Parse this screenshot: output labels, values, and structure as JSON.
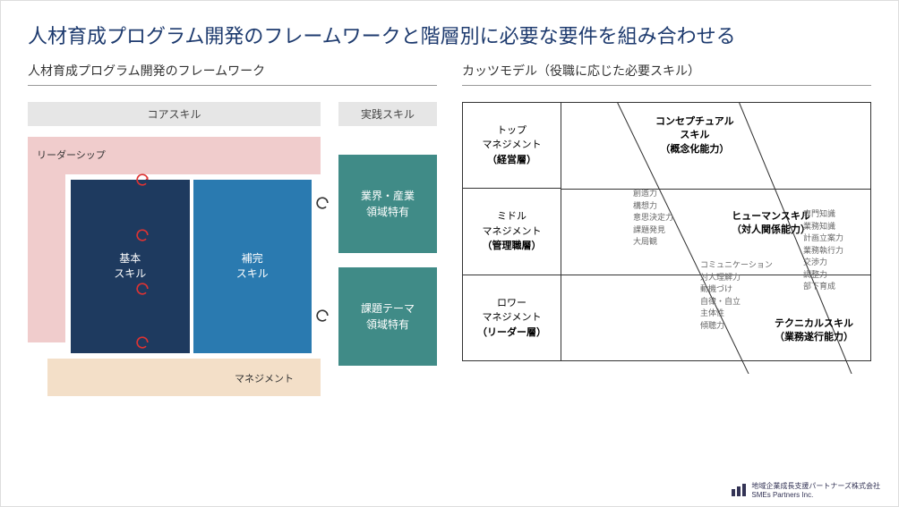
{
  "title": "人材育成プログラム開発のフレームワークと階層別に必要な要件を組み合わせる",
  "left": {
    "subtitle": "人材育成プログラム開発のフレームワーク",
    "core_header": "コアスキル",
    "practice_header": "実践スキル",
    "leadership": "リーダーシップ",
    "management": "マネジメント",
    "basic": "基本\nスキル",
    "complement": "補完\nスキル",
    "practice1": "業界・産業\n領域特有",
    "practice2": "課題テーマ\n領域特有",
    "colors": {
      "pink": "#f0cccc",
      "beige": "#f3dfc8",
      "navy": "#1e3a5f",
      "blue": "#2a7ab0",
      "teal": "#408b87",
      "header_gray": "#e6e6e6",
      "arrow": "#d33"
    }
  },
  "right": {
    "subtitle": "カッツモデル（役職に応じた必要スキル）",
    "levels": [
      {
        "name": "トップ\nマネジメント",
        "sub": "（経営層）"
      },
      {
        "name": "ミドル\nマネジメント",
        "sub": "（管理職層）"
      },
      {
        "name": "ロワー\nマネジメント",
        "sub": "（リーダー層）"
      }
    ],
    "skills": [
      {
        "title": "コンセプチュアル\nスキル",
        "sub": "（概念化能力）",
        "items": [
          "創造力",
          "構想力",
          "意思決定力",
          "課題発見",
          "大局観"
        ]
      },
      {
        "title": "ヒューマンスキル",
        "sub": "（対人関係能力）",
        "items": [
          "コミュニケーション",
          "対人理解力",
          "動機づけ",
          "自律・自立",
          "主体性",
          "傾聴力"
        ]
      },
      {
        "title": "テクニカルスキル",
        "sub": "（業務遂行能力）",
        "items": [
          "専門知識",
          "業務知識",
          "計画立案力",
          "業務執行力",
          "交渉力",
          "調整力",
          "部下育成"
        ]
      }
    ]
  },
  "footer": {
    "company": "地域企業成長支援パートナーズ株式会社",
    "sub": "SMEs Partners Inc."
  }
}
